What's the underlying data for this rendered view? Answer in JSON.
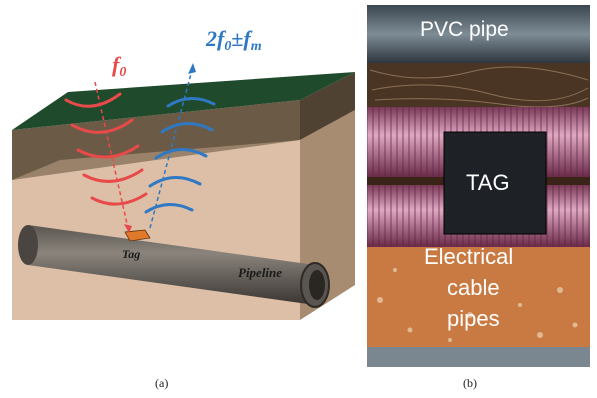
{
  "panel_a": {
    "label_f0_main": "f",
    "label_f0_sub": "0",
    "label_2f_main": "2f",
    "label_2f_sub": "0",
    "label_2f_pm": "±f",
    "label_2f_msub": "m",
    "tag_label": "Tag",
    "pipeline_label": "Pipeline",
    "caption": "(a)",
    "colors": {
      "down_signal": "#e84a4a",
      "up_signal": "#2f78c4",
      "grass": "#1f4a2c",
      "soil": "#6b5a45",
      "pipe": "#4a4540",
      "tag": "#e07a2a"
    }
  },
  "panel_b": {
    "pvc_label": "PVC pipe",
    "tag_label": "TAG",
    "cable_label_line1": "Electrical",
    "cable_label_line2": "cable",
    "cable_label_line3": "pipes",
    "caption": "(b)"
  }
}
